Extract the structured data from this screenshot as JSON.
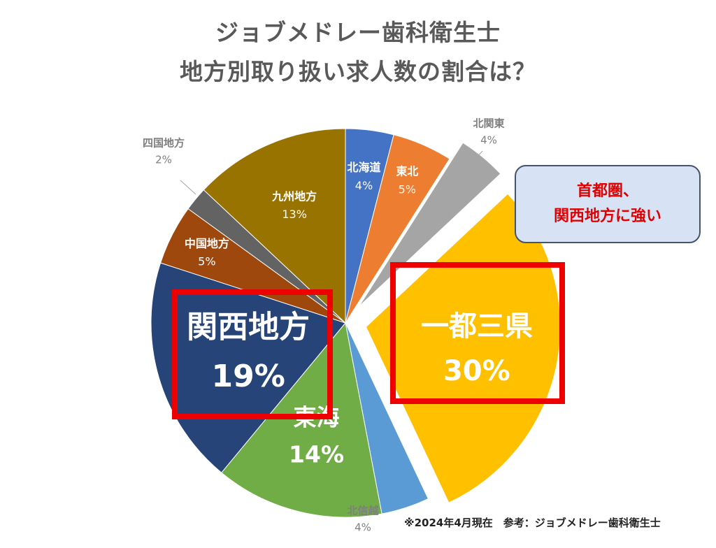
{
  "title_lines": [
    "ジョブメドレー歯科衛生士",
    "地方別取り扱い求人数の割合は？"
  ],
  "callout_lines": [
    "首都圏、",
    "関西地方に強い"
  ],
  "footnote": "※2024年4月現在　参考：ジョブメドレー歯科衛生士",
  "chart_data": {
    "type": "pie",
    "title": "ジョブメドレー歯科衛生士 地方別取り扱い求人数の割合は？",
    "start_angle_deg": 0,
    "direction": "clockwise",
    "slices": [
      {
        "label": "北海道",
        "value": 4,
        "pct": "4%",
        "color": "#4472c4",
        "explode": false
      },
      {
        "label": "東北",
        "value": 5,
        "pct": "5%",
        "color": "#ed7d31",
        "explode": false
      },
      {
        "label": "北関東",
        "value": 4,
        "pct": "4%",
        "color": "#a5a5a5",
        "explode": true
      },
      {
        "label": "一都三県",
        "value": 30,
        "pct": "30%",
        "color": "#ffc000",
        "explode": true
      },
      {
        "label": "北信越",
        "value": 4,
        "pct": "4%",
        "color": "#5b9bd5",
        "explode": false
      },
      {
        "label": "東海",
        "value": 14,
        "pct": "14%",
        "color": "#70ad47",
        "explode": false
      },
      {
        "label": "関西地方",
        "value": 19,
        "pct": "19%",
        "color": "#264478",
        "explode": false
      },
      {
        "label": "中国地方",
        "value": 5,
        "pct": "5%",
        "color": "#9e480e",
        "explode": false
      },
      {
        "label": "四国地方",
        "value": 2,
        "pct": "2%",
        "color": "#636363",
        "explode": false
      },
      {
        "label": "九州地方",
        "value": 13,
        "pct": "13%",
        "color": "#997300",
        "explode": false
      }
    ]
  }
}
